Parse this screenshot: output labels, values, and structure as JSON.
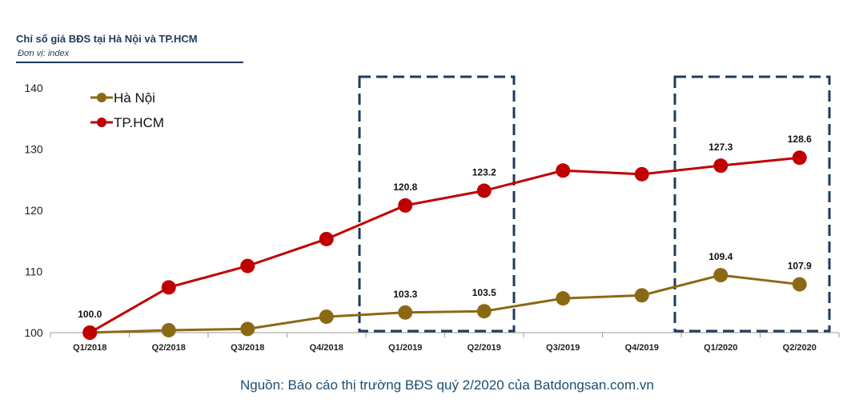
{
  "header": {
    "title": "Chỉ số giá BĐS tại Hà Nội và TP.HCM",
    "subtitle": "Đơn vị: index"
  },
  "source": "Nguồn: Báo cáo thị trường BĐS quý 2/2020 của Batdongsan.com.vn",
  "colors": {
    "hanoi": "#8b6914",
    "hcm": "#c00000",
    "highlight_box": "#1f3b5c",
    "title": "#1f3b5c"
  },
  "chart_data": {
    "type": "line",
    "categories": [
      "Q1/2018",
      "Q2/2018",
      "Q3/2018",
      "Q4/2018",
      "Q1/2019",
      "Q2/2019",
      "Q3/2019",
      "Q4/2019",
      "Q1/2020",
      "Q2/2020"
    ],
    "series": [
      {
        "name": "Hà Nội",
        "values": [
          100.0,
          100.4,
          100.6,
          102.6,
          103.3,
          103.5,
          105.6,
          106.1,
          109.4,
          107.9
        ],
        "labels": [
          "100.0",
          "",
          "",
          "",
          "103.3",
          "103.5",
          "",
          "",
          "109.4",
          "107.9"
        ]
      },
      {
        "name": "TP.HCM",
        "values": [
          100.0,
          107.4,
          110.9,
          115.3,
          120.8,
          123.2,
          126.5,
          125.9,
          127.3,
          128.6
        ],
        "labels": [
          "",
          "",
          "",
          "",
          "120.8",
          "123.2",
          "",
          "",
          "127.3",
          "128.6"
        ]
      }
    ],
    "y_ticks": [
      "100",
      "110",
      "120",
      "130",
      "140"
    ],
    "ylim": [
      100,
      140
    ],
    "highlight_ranges": [
      [
        "Q1/2019",
        "Q2/2019"
      ],
      [
        "Q1/2020",
        "Q2/2020"
      ]
    ],
    "legend_position": "top-left",
    "grid": false
  }
}
